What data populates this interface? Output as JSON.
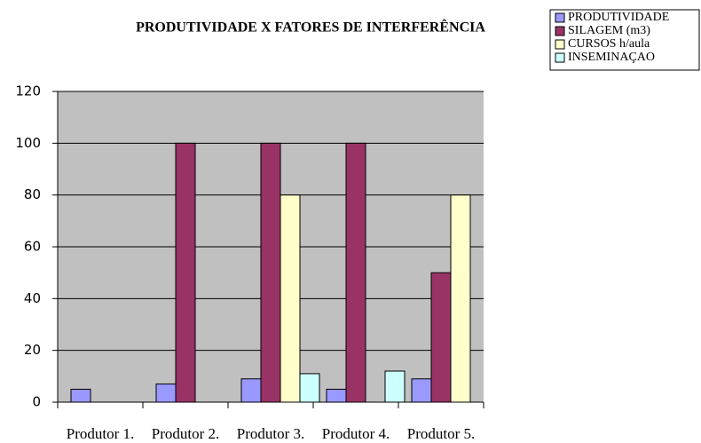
{
  "chart_data": {
    "type": "bar",
    "title": "PRODUTIVIDADE X FATORES DE INTERFERÊNCIA",
    "categories": [
      "Produtor 1.",
      "Produtor 2.",
      "Produtor 3.",
      "Produtor 4.",
      "Produtor 5."
    ],
    "series": [
      {
        "name": "PRODUTIVIDADE",
        "color": "#9999ff",
        "values": [
          5,
          7,
          9,
          5,
          9
        ]
      },
      {
        "name": "SILAGEM (m3)",
        "color": "#993366",
        "values": [
          0,
          100,
          100,
          100,
          50
        ]
      },
      {
        "name": "CURSOS h/aula",
        "color": "#ffffcc",
        "values": [
          0,
          0,
          80,
          0,
          80
        ]
      },
      {
        "name": "INSEMINAÇAO",
        "color": "#ccffff",
        "values": [
          0,
          0,
          11,
          12,
          0
        ]
      }
    ],
    "ylim": [
      0,
      120
    ],
    "yticks": [
      0,
      20,
      40,
      60,
      80,
      100,
      120
    ],
    "grid": true,
    "legend": "top-right"
  }
}
